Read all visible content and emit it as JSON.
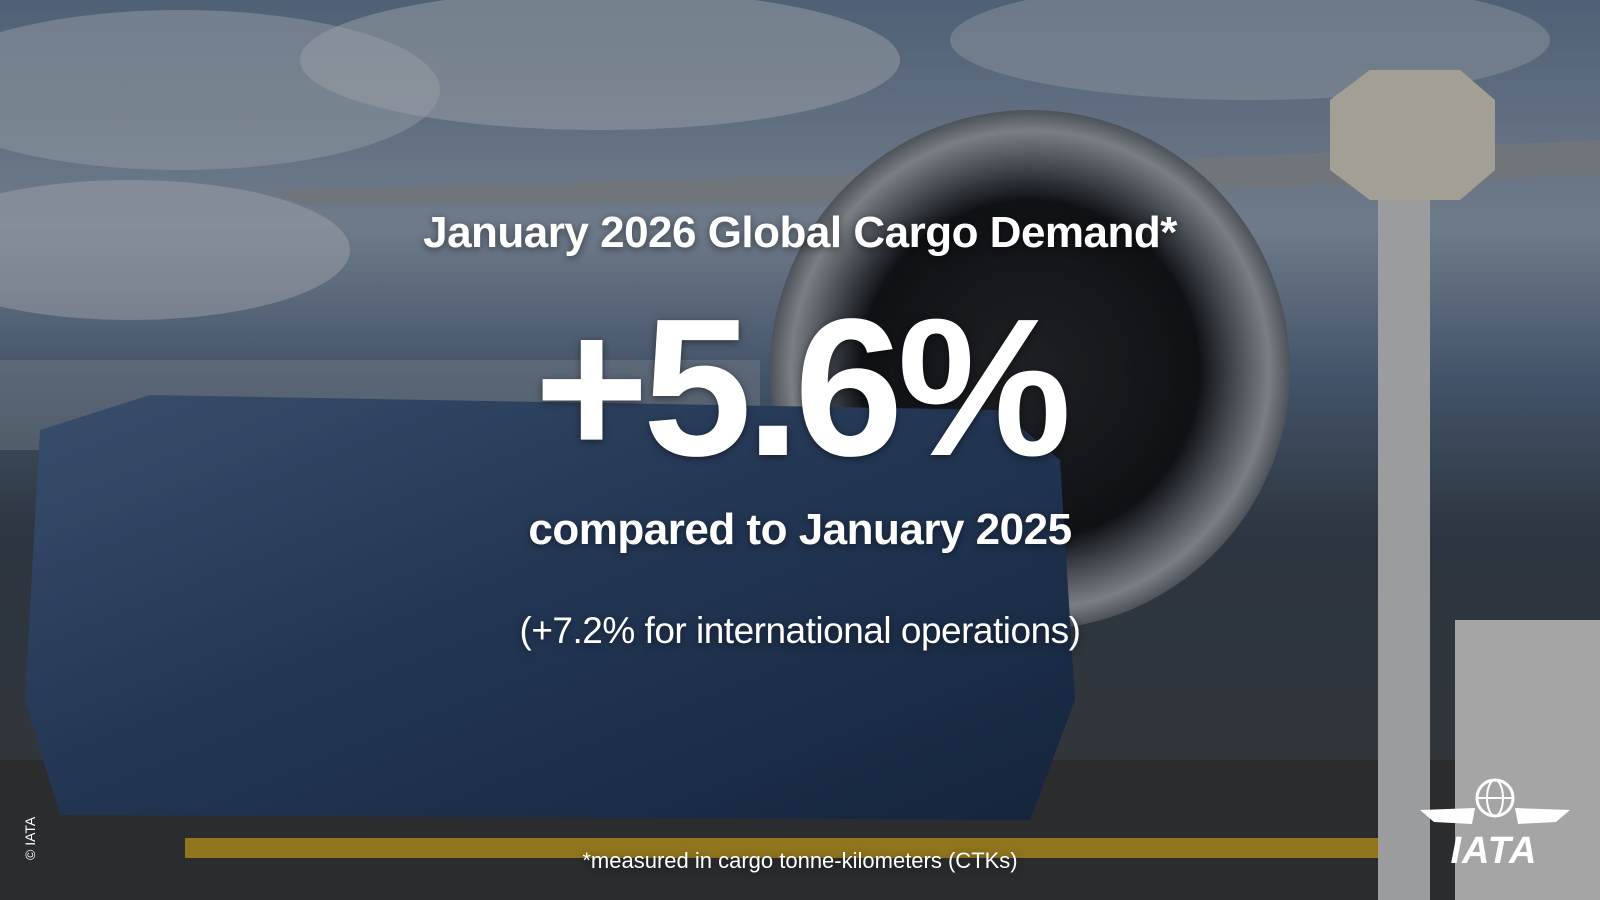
{
  "headline": {
    "title": "January 2026 Global Cargo Demand*",
    "figure": "+5.6%",
    "comparison": "compared to January 2025",
    "detail": "(+7.2% for international operations)"
  },
  "footnote": "*measured in cargo tonne-kilometers (CTKs)",
  "copyright": "© IATA",
  "logo": {
    "text": "IATA"
  }
}
